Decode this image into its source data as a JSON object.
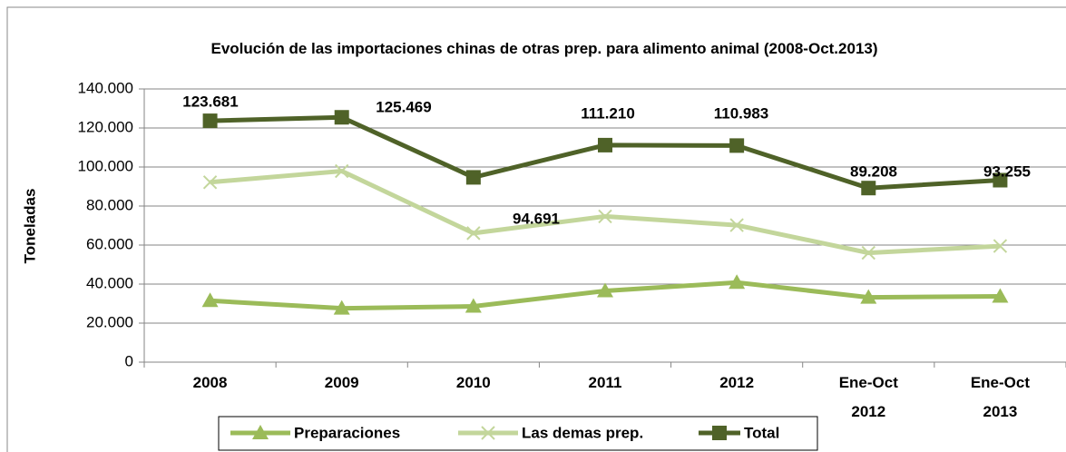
{
  "chart_data": {
    "type": "line",
    "title": "Evolución de las importaciones chinas de otras prep. para alimento animal (2008-Oct.2013)",
    "y_label": "Toneladas",
    "categories": [
      "2008",
      "2009",
      "2010",
      "2011",
      "2012",
      "Ene-Oct 2012",
      "Ene-Oct 2013"
    ],
    "series": [
      {
        "name": "Preparaciones",
        "color": "#9bbb59",
        "marker": "triangle",
        "values": [
          31500,
          27600,
          28600,
          36500,
          40800,
          33200,
          33700
        ]
      },
      {
        "name": "Las demas prep.",
        "color": "#c3d69b",
        "marker": "x",
        "values": [
          92200,
          97900,
          66100,
          74700,
          70200,
          56000,
          59500
        ]
      },
      {
        "name": "Total",
        "color": "#4f6228",
        "marker": "square",
        "values": [
          123681,
          125469,
          94691,
          111210,
          110983,
          89208,
          93255
        ],
        "value_labels": [
          "123.681",
          "125.469",
          "94.691",
          "111.210",
          "110.983",
          "89.208",
          "93.255"
        ]
      }
    ],
    "ylim": [
      0,
      140000
    ],
    "yticks": [
      0,
      {
        "value": 20000,
        "label": "20.000"
      },
      {
        "value": 40000,
        "label": "40.000"
      },
      {
        "value": 60000,
        "label": "60.000"
      },
      {
        "value": 80000,
        "label": "80.000"
      },
      {
        "value": 100000,
        "label": "100.000"
      },
      {
        "value": 120000,
        "label": "120.000"
      },
      {
        "value": 140000,
        "label": "140.000"
      }
    ],
    "grid": true,
    "legend": "bottom"
  }
}
